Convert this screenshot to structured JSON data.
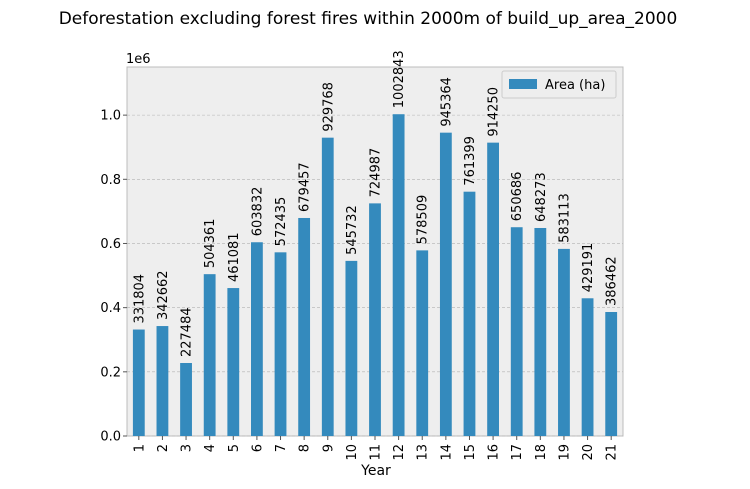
{
  "chart_data": {
    "type": "bar",
    "title": "Deforestation excluding forest fires within 2000m of build_up_area_2000",
    "xlabel": "Year",
    "ylabel": "",
    "y_offset_label": "1e6",
    "y_scale": 1000000,
    "ylim": [
      0,
      1150000
    ],
    "yticks": [
      0,
      200000,
      400000,
      600000,
      800000,
      1000000
    ],
    "ytick_labels": [
      "0.0",
      "0.2",
      "0.4",
      "0.6",
      "0.8",
      "1.0"
    ],
    "grid": true,
    "legend_position": "top-right",
    "categories": [
      "1",
      "2",
      "3",
      "4",
      "5",
      "6",
      "7",
      "8",
      "9",
      "10",
      "11",
      "12",
      "13",
      "14",
      "15",
      "16",
      "17",
      "18",
      "19",
      "20",
      "21"
    ],
    "series": [
      {
        "name": "Area (ha)",
        "color": "#348abd",
        "values": [
          331804,
          342662,
          227484,
          504361,
          461081,
          603832,
          572435,
          679457,
          929768,
          545732,
          724987,
          1002843,
          578509,
          945364,
          761399,
          914250,
          650686,
          648273,
          583113,
          429191,
          386462
        ]
      }
    ]
  }
}
